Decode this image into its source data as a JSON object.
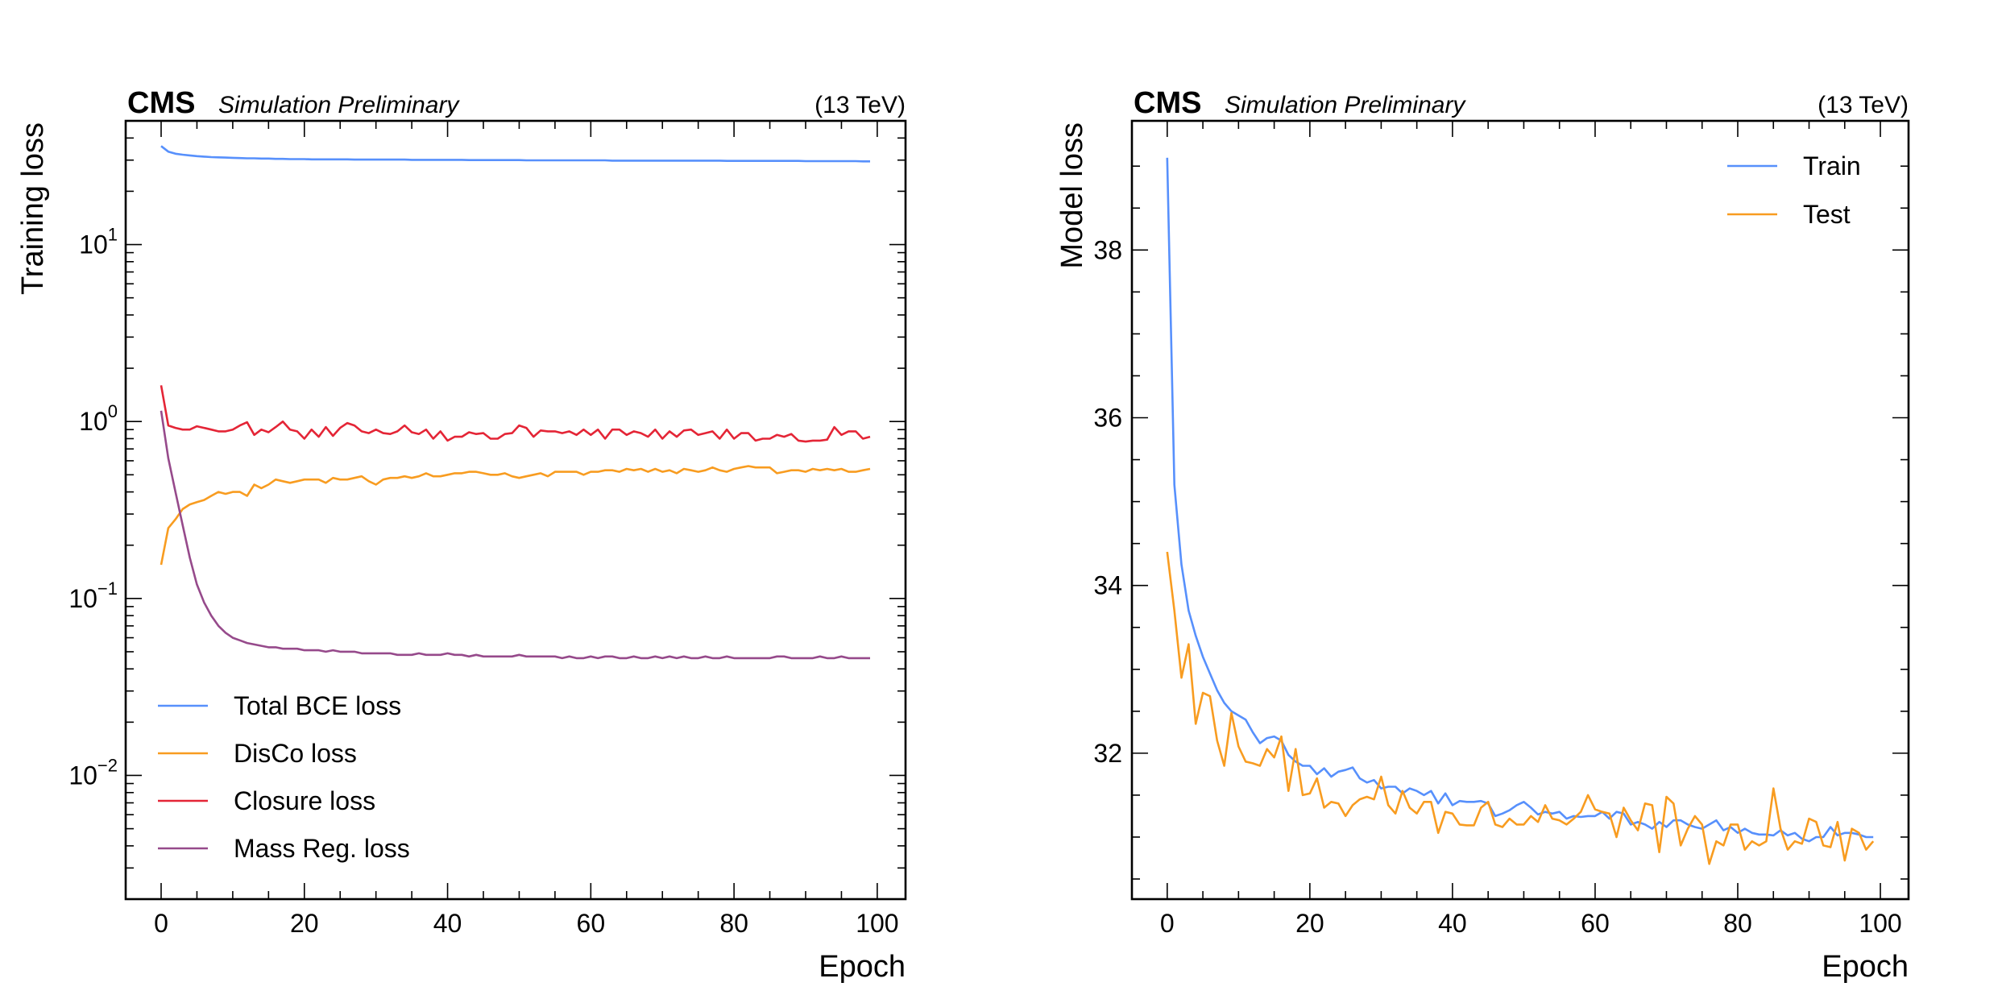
{
  "chart_data": [
    {
      "type": "line",
      "experiment": "CMS",
      "status": "Simulation Preliminary",
      "energy": "(13 TeV)",
      "xlabel": "Epoch",
      "ylabel": "Training loss",
      "yscale": "log",
      "xlim": [
        -4.95,
        103.95
      ],
      "ylim": [
        0.002,
        50
      ],
      "x_start": 0,
      "xticks": [
        "0",
        "20",
        "40",
        "60",
        "80",
        "100"
      ],
      "yticks": [
        {
          "value": 10,
          "base": "10",
          "exp": "1"
        },
        {
          "value": 1,
          "base": "10",
          "exp": "0"
        },
        {
          "value": 0.1,
          "base": "10",
          "exp": "−1"
        },
        {
          "value": 0.01,
          "base": "10",
          "exp": "−2"
        }
      ],
      "legend_position": "lower-left",
      "series": [
        {
          "name": "Total BCE loss",
          "color": "#5790fc",
          "values": [
            36,
            33.5,
            32.6,
            32.2,
            31.9,
            31.6,
            31.4,
            31.2,
            31.1,
            31.0,
            30.9,
            30.8,
            30.7,
            30.7,
            30.6,
            30.6,
            30.5,
            30.5,
            30.4,
            30.4,
            30.4,
            30.3,
            30.3,
            30.3,
            30.3,
            30.3,
            30.3,
            30.2,
            30.2,
            30.2,
            30.2,
            30.2,
            30.2,
            30.2,
            30.2,
            30.1,
            30.1,
            30.1,
            30.1,
            30.1,
            30.1,
            30.1,
            30.1,
            30.0,
            30.0,
            30.0,
            30.0,
            30.0,
            30.0,
            30.0,
            30.0,
            29.9,
            29.9,
            29.9,
            29.9,
            29.9,
            29.9,
            29.9,
            29.9,
            29.9,
            29.9,
            29.9,
            29.9,
            29.8,
            29.8,
            29.8,
            29.8,
            29.8,
            29.8,
            29.8,
            29.8,
            29.8,
            29.8,
            29.8,
            29.8,
            29.8,
            29.8,
            29.8,
            29.8,
            29.7,
            29.7,
            29.7,
            29.7,
            29.7,
            29.7,
            29.7,
            29.7,
            29.7,
            29.7,
            29.7,
            29.6,
            29.6,
            29.6,
            29.6,
            29.6,
            29.6,
            29.6,
            29.6,
            29.5,
            29.5
          ]
        },
        {
          "name": "DisCo loss",
          "color": "#f89c20",
          "values": [
            0.155,
            0.25,
            0.28,
            0.32,
            0.34,
            0.35,
            0.36,
            0.38,
            0.4,
            0.39,
            0.4,
            0.4,
            0.38,
            0.44,
            0.42,
            0.44,
            0.47,
            0.46,
            0.45,
            0.46,
            0.47,
            0.47,
            0.47,
            0.45,
            0.48,
            0.47,
            0.47,
            0.48,
            0.49,
            0.46,
            0.44,
            0.47,
            0.48,
            0.48,
            0.49,
            0.48,
            0.49,
            0.51,
            0.49,
            0.49,
            0.5,
            0.51,
            0.51,
            0.52,
            0.52,
            0.51,
            0.5,
            0.5,
            0.51,
            0.49,
            0.48,
            0.49,
            0.5,
            0.51,
            0.49,
            0.52,
            0.52,
            0.52,
            0.52,
            0.5,
            0.52,
            0.52,
            0.53,
            0.53,
            0.52,
            0.54,
            0.53,
            0.54,
            0.52,
            0.54,
            0.52,
            0.53,
            0.51,
            0.54,
            0.53,
            0.52,
            0.53,
            0.55,
            0.53,
            0.52,
            0.54,
            0.55,
            0.56,
            0.55,
            0.55,
            0.55,
            0.51,
            0.52,
            0.53,
            0.53,
            0.52,
            0.54,
            0.53,
            0.54,
            0.53,
            0.54,
            0.52,
            0.52,
            0.53,
            0.54
          ]
        },
        {
          "name": "Closure loss",
          "color": "#e42536",
          "values": [
            1.6,
            0.95,
            0.92,
            0.9,
            0.9,
            0.94,
            0.92,
            0.9,
            0.88,
            0.88,
            0.9,
            0.95,
            0.99,
            0.84,
            0.9,
            0.87,
            0.93,
            1.0,
            0.9,
            0.88,
            0.8,
            0.9,
            0.82,
            0.93,
            0.83,
            0.92,
            0.98,
            0.95,
            0.88,
            0.86,
            0.9,
            0.86,
            0.85,
            0.88,
            0.95,
            0.87,
            0.85,
            0.9,
            0.8,
            0.88,
            0.78,
            0.82,
            0.82,
            0.87,
            0.85,
            0.86,
            0.8,
            0.8,
            0.85,
            0.86,
            0.95,
            0.92,
            0.82,
            0.89,
            0.88,
            0.88,
            0.86,
            0.88,
            0.84,
            0.9,
            0.84,
            0.9,
            0.8,
            0.9,
            0.9,
            0.84,
            0.88,
            0.86,
            0.82,
            0.9,
            0.8,
            0.88,
            0.82,
            0.89,
            0.9,
            0.84,
            0.86,
            0.88,
            0.8,
            0.9,
            0.8,
            0.86,
            0.86,
            0.78,
            0.8,
            0.8,
            0.84,
            0.82,
            0.85,
            0.78,
            0.77,
            0.78,
            0.78,
            0.79,
            0.93,
            0.84,
            0.88,
            0.88,
            0.8,
            0.82
          ]
        },
        {
          "name": "Mass Reg. loss",
          "color": "#964a8b",
          "values": [
            1.15,
            0.62,
            0.4,
            0.26,
            0.17,
            0.12,
            0.095,
            0.08,
            0.07,
            0.064,
            0.06,
            0.058,
            0.056,
            0.055,
            0.054,
            0.053,
            0.053,
            0.052,
            0.052,
            0.052,
            0.051,
            0.051,
            0.051,
            0.05,
            0.051,
            0.05,
            0.05,
            0.05,
            0.049,
            0.049,
            0.049,
            0.049,
            0.049,
            0.048,
            0.048,
            0.048,
            0.049,
            0.048,
            0.048,
            0.048,
            0.049,
            0.048,
            0.048,
            0.047,
            0.048,
            0.047,
            0.047,
            0.047,
            0.047,
            0.047,
            0.048,
            0.047,
            0.047,
            0.047,
            0.047,
            0.047,
            0.046,
            0.047,
            0.046,
            0.046,
            0.047,
            0.046,
            0.047,
            0.047,
            0.046,
            0.046,
            0.047,
            0.046,
            0.046,
            0.047,
            0.046,
            0.047,
            0.046,
            0.047,
            0.046,
            0.046,
            0.047,
            0.046,
            0.046,
            0.047,
            0.046,
            0.046,
            0.046,
            0.046,
            0.046,
            0.046,
            0.047,
            0.047,
            0.046,
            0.046,
            0.046,
            0.046,
            0.047,
            0.046,
            0.046,
            0.047,
            0.046,
            0.046,
            0.046,
            0.046
          ]
        }
      ]
    },
    {
      "type": "line",
      "experiment": "CMS",
      "status": "Simulation Preliminary",
      "energy": "(13 TeV)",
      "xlabel": "Epoch",
      "ylabel": "Model loss",
      "yscale": "linear",
      "xlim": [
        -4.95,
        103.95
      ],
      "ylim": [
        30.26,
        39.54
      ],
      "x_start": 0,
      "xticks": [
        "0",
        "20",
        "40",
        "60",
        "80",
        "100"
      ],
      "yticks": [
        {
          "value": 32,
          "label": "32"
        },
        {
          "value": 34,
          "label": "34"
        },
        {
          "value": 36,
          "label": "36"
        },
        {
          "value": 38,
          "label": "38"
        }
      ],
      "legend_position": "upper-right",
      "series": [
        {
          "name": "Train",
          "color": "#5790fc",
          "values": [
            39.1,
            35.2,
            34.25,
            33.7,
            33.4,
            33.15,
            32.95,
            32.75,
            32.6,
            32.5,
            32.45,
            32.4,
            32.25,
            32.12,
            32.18,
            32.2,
            32.15,
            31.98,
            31.9,
            31.85,
            31.85,
            31.75,
            31.82,
            31.72,
            31.78,
            31.8,
            31.83,
            31.7,
            31.65,
            31.68,
            31.58,
            31.6,
            31.6,
            31.52,
            31.58,
            31.55,
            31.5,
            31.55,
            31.4,
            31.52,
            31.38,
            31.43,
            31.42,
            31.42,
            31.43,
            31.4,
            31.25,
            31.28,
            31.32,
            31.38,
            31.42,
            31.35,
            31.27,
            31.3,
            31.28,
            31.3,
            31.22,
            31.25,
            31.24,
            31.25,
            31.25,
            31.3,
            31.22,
            31.3,
            31.28,
            31.15,
            31.18,
            31.15,
            31.1,
            31.18,
            31.12,
            31.2,
            31.2,
            31.15,
            31.12,
            31.1,
            31.15,
            31.2,
            31.08,
            31.12,
            31.05,
            31.1,
            31.05,
            31.03,
            31.03,
            31.02,
            31.08,
            31.02,
            31.05,
            30.98,
            30.95,
            31.0,
            31.0,
            31.12,
            31.02,
            31.05,
            31.05,
            31.03,
            31.0,
            31.0
          ]
        },
        {
          "name": "Test",
          "color": "#f89c20",
          "values": [
            34.4,
            33.7,
            32.9,
            33.3,
            32.35,
            32.72,
            32.68,
            32.15,
            31.85,
            32.48,
            32.08,
            31.9,
            31.88,
            31.85,
            32.05,
            31.95,
            32.2,
            31.55,
            32.05,
            31.5,
            31.52,
            31.7,
            31.35,
            31.42,
            31.4,
            31.25,
            31.38,
            31.45,
            31.48,
            31.45,
            31.72,
            31.38,
            31.28,
            31.55,
            31.35,
            31.28,
            31.42,
            31.42,
            31.05,
            31.3,
            31.28,
            31.15,
            31.14,
            31.14,
            31.35,
            31.42,
            31.15,
            31.12,
            31.22,
            31.15,
            31.15,
            31.25,
            31.18,
            31.38,
            31.22,
            31.2,
            31.15,
            31.22,
            31.3,
            31.5,
            31.33,
            31.3,
            31.28,
            31.0,
            31.35,
            31.2,
            31.08,
            31.4,
            31.38,
            30.82,
            31.48,
            31.4,
            30.9,
            31.1,
            31.25,
            31.15,
            30.68,
            30.95,
            30.9,
            31.15,
            31.15,
            30.85,
            30.95,
            30.9,
            30.95,
            31.58,
            31.1,
            30.85,
            30.95,
            30.92,
            31.22,
            31.18,
            30.9,
            30.88,
            31.18,
            30.72,
            31.1,
            31.05,
            30.85,
            30.95
          ]
        }
      ]
    }
  ]
}
